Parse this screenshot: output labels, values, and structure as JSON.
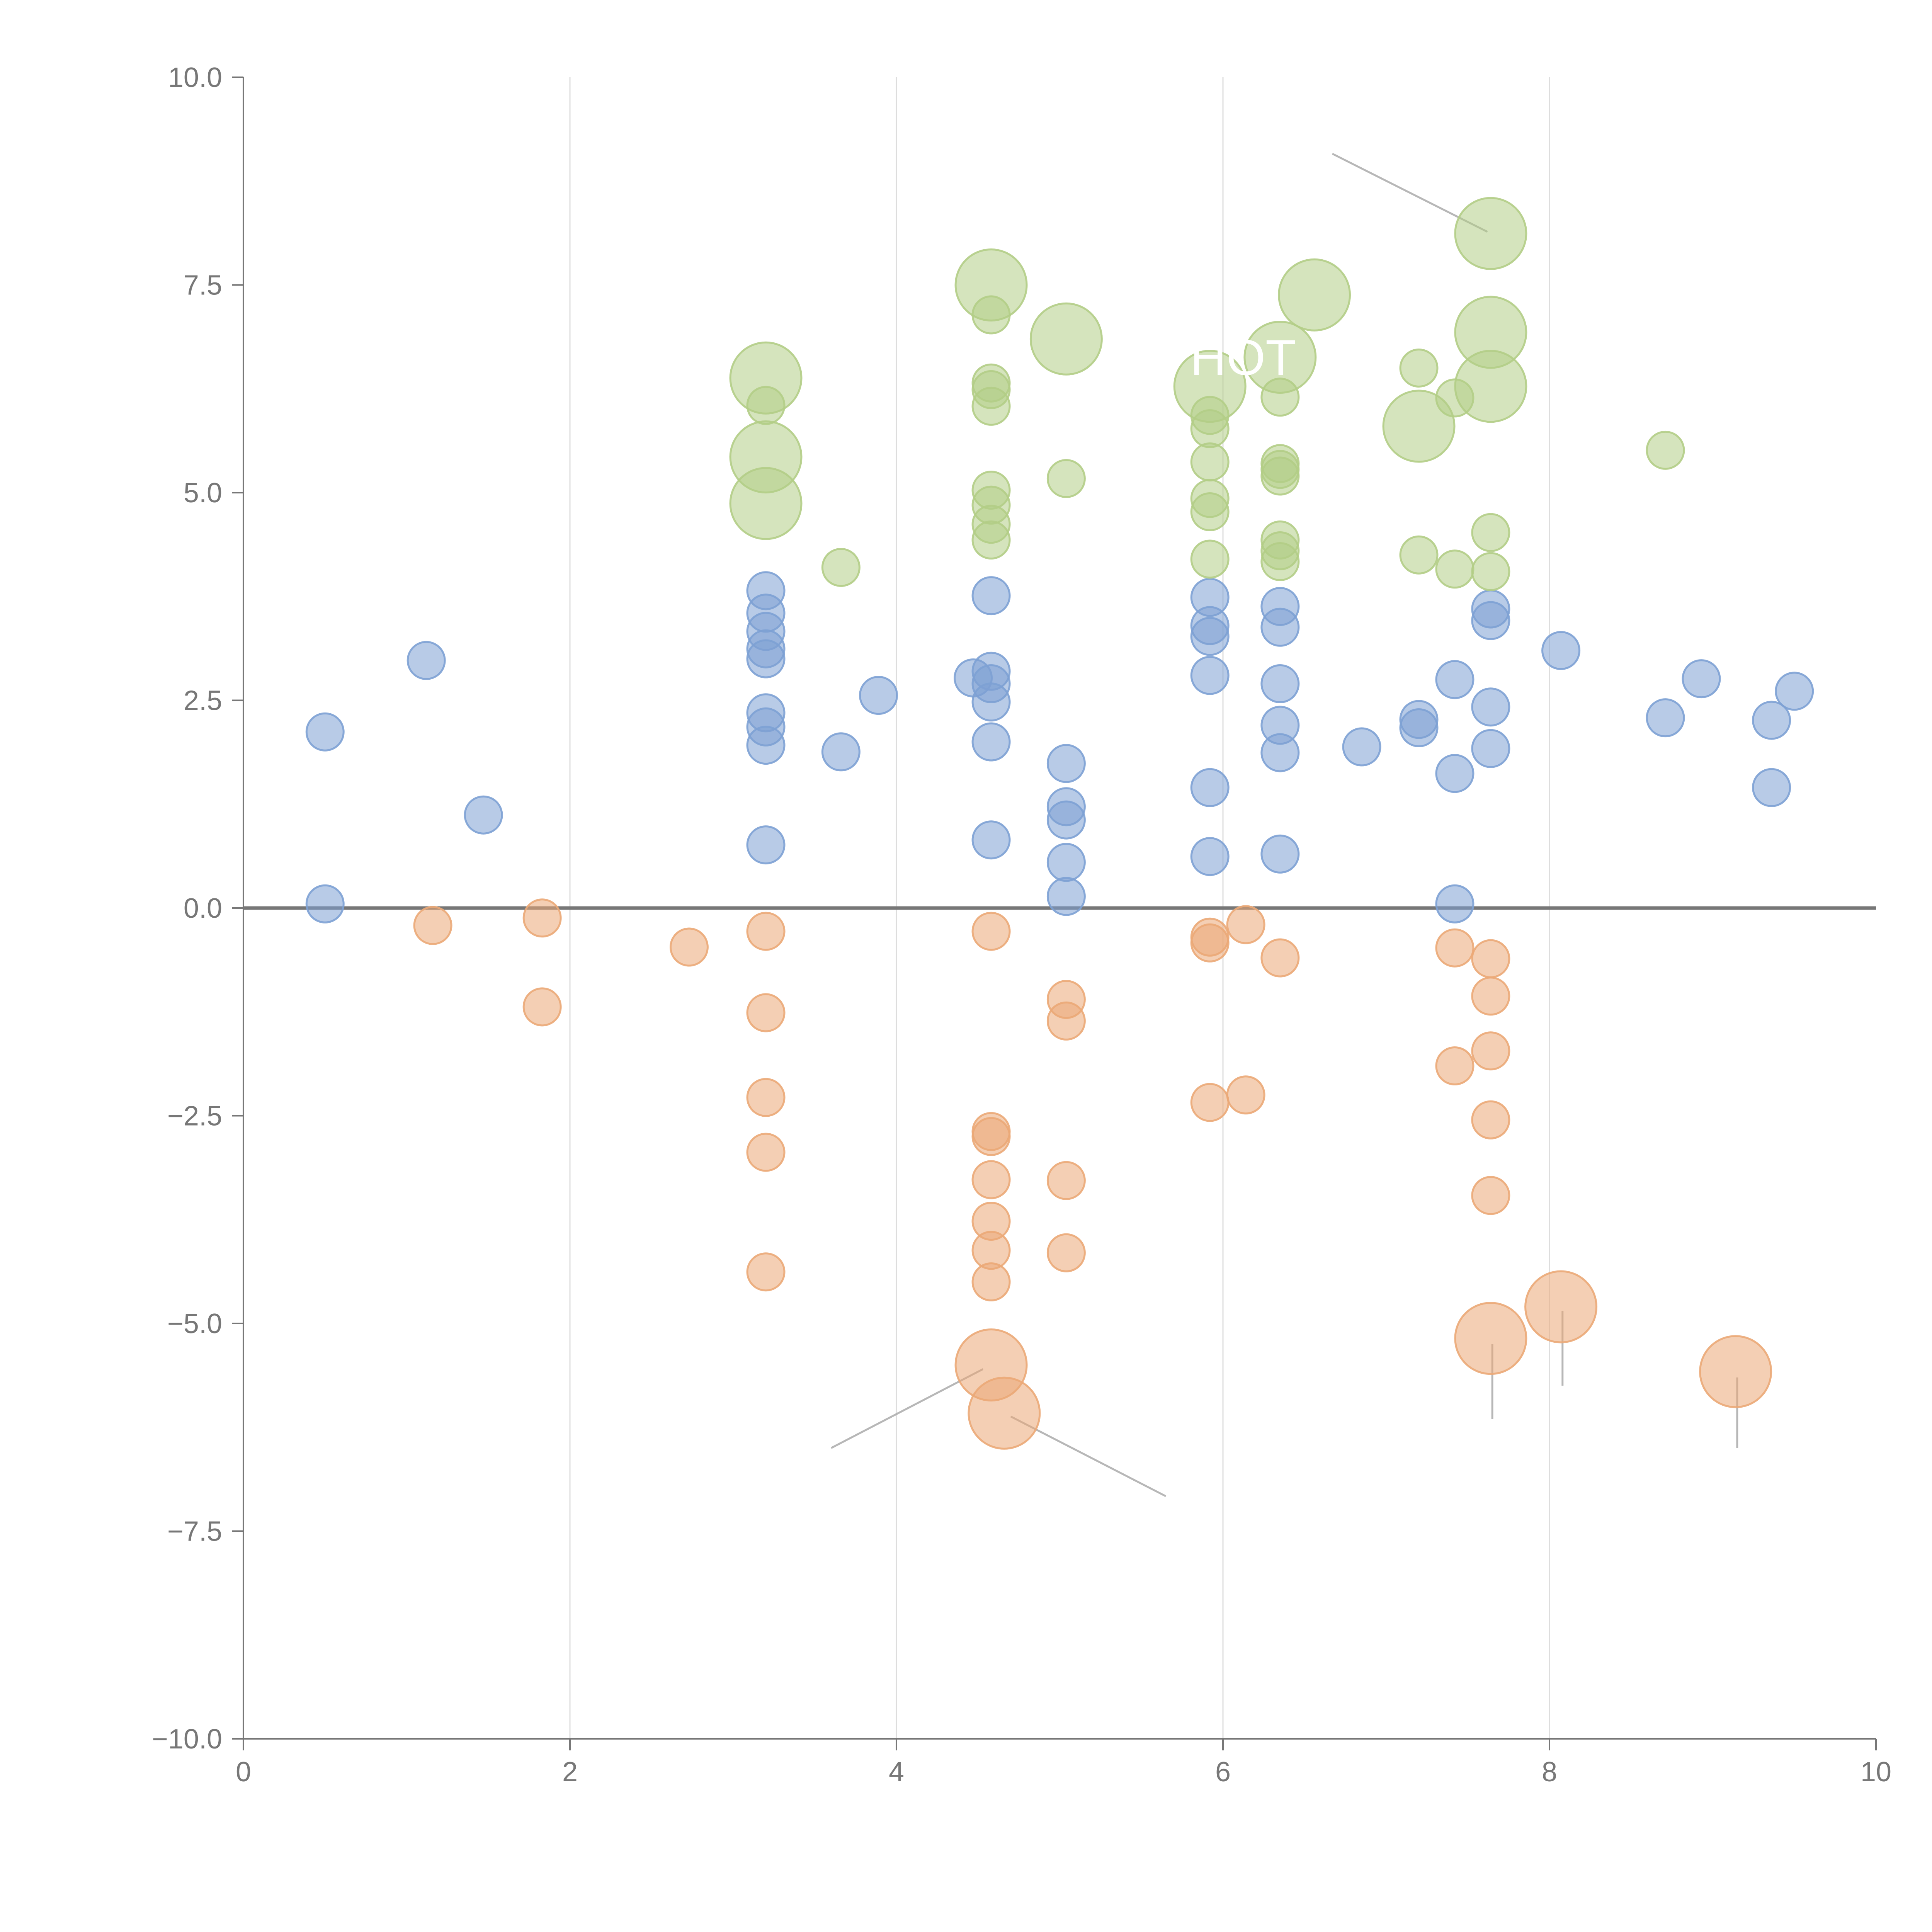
{
  "chart_data": {
    "type": "scatter",
    "title": "",
    "xlabel": "",
    "ylabel": "",
    "xlim": [
      0,
      10
    ],
    "ylim": [
      -10,
      10
    ],
    "x_ticks": [
      "0",
      "2",
      "4",
      "6",
      "8",
      "10"
    ],
    "y_ticks": [
      "10.0",
      "7.5",
      "5.0",
      "2.5",
      "0.0",
      "−2.5",
      "−5.0",
      "−7.5",
      "−10.0"
    ],
    "x_grid": true,
    "y_grid": false,
    "zero_line": true,
    "colors": {
      "positive": "#7da1d4",
      "negative": "#eba877",
      "top": "#b2cd86"
    },
    "annotation": "HOT",
    "series": [
      {
        "color": "positive",
        "points": [
          {
            "x": 0.5,
            "y": 2.12,
            "size": 1
          },
          {
            "x": 0.5,
            "y": 0.05,
            "size": 1
          },
          {
            "x": 1.12,
            "y": 2.98,
            "size": 1
          },
          {
            "x": 1.47,
            "y": 1.12,
            "size": 1
          },
          {
            "x": 3.2,
            "y": 3.82,
            "size": 1
          },
          {
            "x": 3.2,
            "y": 3.55,
            "size": 1
          },
          {
            "x": 3.2,
            "y": 3.33,
            "size": 1
          },
          {
            "x": 3.2,
            "y": 3.12,
            "size": 1
          },
          {
            "x": 3.2,
            "y": 3.0,
            "size": 1
          },
          {
            "x": 3.2,
            "y": 2.35,
            "size": 1
          },
          {
            "x": 3.2,
            "y": 2.18,
            "size": 1
          },
          {
            "x": 3.2,
            "y": 1.96,
            "size": 1
          },
          {
            "x": 3.2,
            "y": 0.76,
            "size": 1
          },
          {
            "x": 3.66,
            "y": 1.88,
            "size": 1
          },
          {
            "x": 3.89,
            "y": 2.56,
            "size": 1
          },
          {
            "x": 4.47,
            "y": 2.77,
            "size": 1
          },
          {
            "x": 4.58,
            "y": 3.76,
            "size": 1
          },
          {
            "x": 4.58,
            "y": 2.85,
            "size": 1
          },
          {
            "x": 4.58,
            "y": 2.7,
            "size": 1
          },
          {
            "x": 4.58,
            "y": 2.48,
            "size": 1
          },
          {
            "x": 4.58,
            "y": 2.0,
            "size": 1
          },
          {
            "x": 4.58,
            "y": 0.82,
            "size": 1
          },
          {
            "x": 5.04,
            "y": 1.74,
            "size": 1
          },
          {
            "x": 5.04,
            "y": 1.22,
            "size": 1
          },
          {
            "x": 5.04,
            "y": 1.06,
            "size": 1
          },
          {
            "x": 5.04,
            "y": 0.55,
            "size": 1
          },
          {
            "x": 5.04,
            "y": 0.14,
            "size": 1
          },
          {
            "x": 5.92,
            "y": 3.74,
            "size": 1
          },
          {
            "x": 5.92,
            "y": 3.4,
            "size": 1
          },
          {
            "x": 5.92,
            "y": 3.27,
            "size": 1
          },
          {
            "x": 5.92,
            "y": 2.8,
            "size": 1
          },
          {
            "x": 5.92,
            "y": 1.45,
            "size": 1
          },
          {
            "x": 5.92,
            "y": 0.62,
            "size": 1
          },
          {
            "x": 6.35,
            "y": 3.63,
            "size": 1
          },
          {
            "x": 6.35,
            "y": 3.38,
            "size": 1
          },
          {
            "x": 6.35,
            "y": 2.7,
            "size": 1
          },
          {
            "x": 6.35,
            "y": 2.2,
            "size": 1
          },
          {
            "x": 6.35,
            "y": 1.87,
            "size": 1
          },
          {
            "x": 6.35,
            "y": 0.65,
            "size": 1
          },
          {
            "x": 6.85,
            "y": 1.94,
            "size": 1
          },
          {
            "x": 7.2,
            "y": 2.27,
            "size": 1
          },
          {
            "x": 7.2,
            "y": 2.17,
            "size": 1
          },
          {
            "x": 7.42,
            "y": 2.75,
            "size": 1
          },
          {
            "x": 7.42,
            "y": 1.62,
            "size": 1
          },
          {
            "x": 7.42,
            "y": 0.05,
            "size": 1
          },
          {
            "x": 7.64,
            "y": 3.6,
            "size": 1
          },
          {
            "x": 7.64,
            "y": 3.46,
            "size": 1
          },
          {
            "x": 7.64,
            "y": 2.42,
            "size": 1
          },
          {
            "x": 7.64,
            "y": 1.92,
            "size": 1
          },
          {
            "x": 8.07,
            "y": 3.1,
            "size": 1
          },
          {
            "x": 8.71,
            "y": 2.29,
            "size": 1
          },
          {
            "x": 8.93,
            "y": 2.76,
            "size": 1
          },
          {
            "x": 9.36,
            "y": 2.26,
            "size": 1
          },
          {
            "x": 9.36,
            "y": 1.45,
            "size": 1
          },
          {
            "x": 9.5,
            "y": 2.61,
            "size": 1
          }
        ]
      },
      {
        "color": "negative",
        "points": [
          {
            "x": 1.16,
            "y": -0.21,
            "size": 1
          },
          {
            "x": 1.83,
            "y": -0.12,
            "size": 1
          },
          {
            "x": 1.83,
            "y": -1.19,
            "size": 1
          },
          {
            "x": 2.73,
            "y": -0.47,
            "size": 1
          },
          {
            "x": 3.2,
            "y": -0.28,
            "size": 1
          },
          {
            "x": 3.2,
            "y": -1.26,
            "size": 1
          },
          {
            "x": 3.2,
            "y": -2.28,
            "size": 1
          },
          {
            "x": 3.2,
            "y": -2.94,
            "size": 1
          },
          {
            "x": 3.2,
            "y": -4.38,
            "size": 1
          },
          {
            "x": 4.58,
            "y": -0.28,
            "size": 1
          },
          {
            "x": 4.58,
            "y": -2.69,
            "size": 1
          },
          {
            "x": 4.58,
            "y": -2.75,
            "size": 1
          },
          {
            "x": 4.58,
            "y": -3.27,
            "size": 1
          },
          {
            "x": 4.58,
            "y": -3.77,
            "size": 1
          },
          {
            "x": 4.58,
            "y": -4.12,
            "size": 1
          },
          {
            "x": 4.58,
            "y": -4.5,
            "size": 1
          },
          {
            "x": 5.04,
            "y": -1.1,
            "size": 1
          },
          {
            "x": 5.04,
            "y": -1.36,
            "size": 1
          },
          {
            "x": 5.04,
            "y": -3.28,
            "size": 1
          },
          {
            "x": 5.04,
            "y": -4.15,
            "size": 1
          },
          {
            "x": 5.92,
            "y": -0.35,
            "size": 1
          },
          {
            "x": 5.92,
            "y": -0.42,
            "size": 1
          },
          {
            "x": 5.92,
            "y": -2.34,
            "size": 1
          },
          {
            "x": 6.14,
            "y": -0.2,
            "size": 1
          },
          {
            "x": 6.14,
            "y": -2.25,
            "size": 1
          },
          {
            "x": 6.35,
            "y": -0.6,
            "size": 1
          },
          {
            "x": 7.42,
            "y": -0.48,
            "size": 1
          },
          {
            "x": 7.42,
            "y": -1.9,
            "size": 1
          },
          {
            "x": 7.64,
            "y": -0.61,
            "size": 1
          },
          {
            "x": 7.64,
            "y": -1.06,
            "size": 1
          },
          {
            "x": 7.64,
            "y": -1.72,
            "size": 1
          },
          {
            "x": 7.64,
            "y": -2.55,
            "size": 1
          },
          {
            "x": 7.64,
            "y": -3.46,
            "size": 1
          },
          {
            "x": 4.58,
            "y": -5.5,
            "size": 2
          },
          {
            "x": 4.66,
            "y": -6.08,
            "size": 2
          },
          {
            "x": 7.64,
            "y": -5.18,
            "size": 2
          },
          {
            "x": 8.07,
            "y": -4.8,
            "size": 2
          },
          {
            "x": 9.14,
            "y": -5.58,
            "size": 2
          }
        ]
      },
      {
        "color": "top",
        "points": [
          {
            "x": 3.2,
            "y": 6.05,
            "size": 1
          },
          {
            "x": 3.66,
            "y": 4.1,
            "size": 1
          },
          {
            "x": 4.58,
            "y": 7.14,
            "size": 1
          },
          {
            "x": 4.58,
            "y": 6.32,
            "size": 1
          },
          {
            "x": 4.58,
            "y": 6.24,
            "size": 1
          },
          {
            "x": 4.58,
            "y": 6.04,
            "size": 1
          },
          {
            "x": 4.58,
            "y": 5.03,
            "size": 1
          },
          {
            "x": 4.58,
            "y": 4.85,
            "size": 1
          },
          {
            "x": 4.58,
            "y": 4.62,
            "size": 1
          },
          {
            "x": 4.58,
            "y": 4.43,
            "size": 1
          },
          {
            "x": 5.04,
            "y": 5.17,
            "size": 1
          },
          {
            "x": 5.92,
            "y": 5.93,
            "size": 1
          },
          {
            "x": 5.92,
            "y": 5.77,
            "size": 1
          },
          {
            "x": 5.92,
            "y": 5.37,
            "size": 1
          },
          {
            "x": 5.92,
            "y": 4.93,
            "size": 1
          },
          {
            "x": 5.92,
            "y": 4.77,
            "size": 1
          },
          {
            "x": 5.92,
            "y": 4.2,
            "size": 1
          },
          {
            "x": 6.35,
            "y": 6.15,
            "size": 1
          },
          {
            "x": 6.35,
            "y": 5.35,
            "size": 1
          },
          {
            "x": 6.35,
            "y": 5.28,
            "size": 1
          },
          {
            "x": 6.35,
            "y": 5.2,
            "size": 1
          },
          {
            "x": 6.35,
            "y": 4.43,
            "size": 1
          },
          {
            "x": 6.35,
            "y": 4.3,
            "size": 1
          },
          {
            "x": 6.35,
            "y": 4.17,
            "size": 1
          },
          {
            "x": 7.2,
            "y": 6.5,
            "size": 1
          },
          {
            "x": 7.2,
            "y": 4.25,
            "size": 1
          },
          {
            "x": 7.42,
            "y": 6.14,
            "size": 1
          },
          {
            "x": 7.42,
            "y": 4.08,
            "size": 1
          },
          {
            "x": 7.64,
            "y": 4.52,
            "size": 1
          },
          {
            "x": 7.64,
            "y": 4.05,
            "size": 1
          },
          {
            "x": 8.71,
            "y": 5.51,
            "size": 1
          },
          {
            "x": 3.2,
            "y": 6.38,
            "size": 2
          },
          {
            "x": 3.2,
            "y": 5.43,
            "size": 2
          },
          {
            "x": 3.2,
            "y": 4.87,
            "size": 2
          },
          {
            "x": 4.58,
            "y": 7.5,
            "size": 2
          },
          {
            "x": 5.04,
            "y": 6.85,
            "size": 2
          },
          {
            "x": 5.92,
            "y": 6.28,
            "size": 2
          },
          {
            "x": 6.35,
            "y": 6.63,
            "size": 2
          },
          {
            "x": 6.56,
            "y": 7.38,
            "size": 2
          },
          {
            "x": 7.2,
            "y": 5.8,
            "size": 2
          },
          {
            "x": 7.64,
            "y": 8.12,
            "size": 2
          },
          {
            "x": 7.64,
            "y": 6.93,
            "size": 2
          },
          {
            "x": 7.64,
            "y": 6.28,
            "size": 2
          }
        ]
      }
    ]
  }
}
